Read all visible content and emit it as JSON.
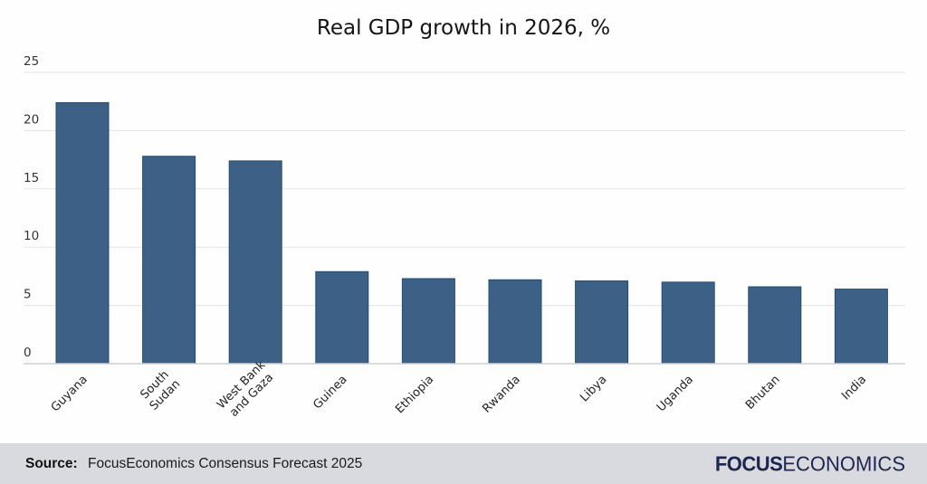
{
  "chart_data": {
    "type": "bar",
    "title": "Real GDP growth in 2026, %",
    "xlabel": "",
    "ylabel": "",
    "categories": [
      [
        "Guyana"
      ],
      [
        "South",
        "Sudan"
      ],
      [
        "West Bank",
        "and Gaza"
      ],
      [
        "Guinea"
      ],
      [
        "Ethiopia"
      ],
      [
        "Rwanda"
      ],
      [
        "Libya"
      ],
      [
        "Uganda"
      ],
      [
        "Bhutan"
      ],
      [
        "India"
      ]
    ],
    "values": [
      22.4,
      17.8,
      17.4,
      7.9,
      7.3,
      7.2,
      7.1,
      7.0,
      6.6,
      6.4
    ],
    "ylim": [
      0,
      25
    ],
    "yticks": [
      0,
      5,
      10,
      15,
      20,
      25
    ],
    "grid": true,
    "legend": "none",
    "bar_color": "#3d6087"
  },
  "footer": {
    "source_label": "Source:",
    "source_text": "FocusEconomics Consensus Forecast 2025",
    "logo_bold": "FOCUS",
    "logo_light": "ECONOMICS",
    "background": "#d9dadf"
  }
}
